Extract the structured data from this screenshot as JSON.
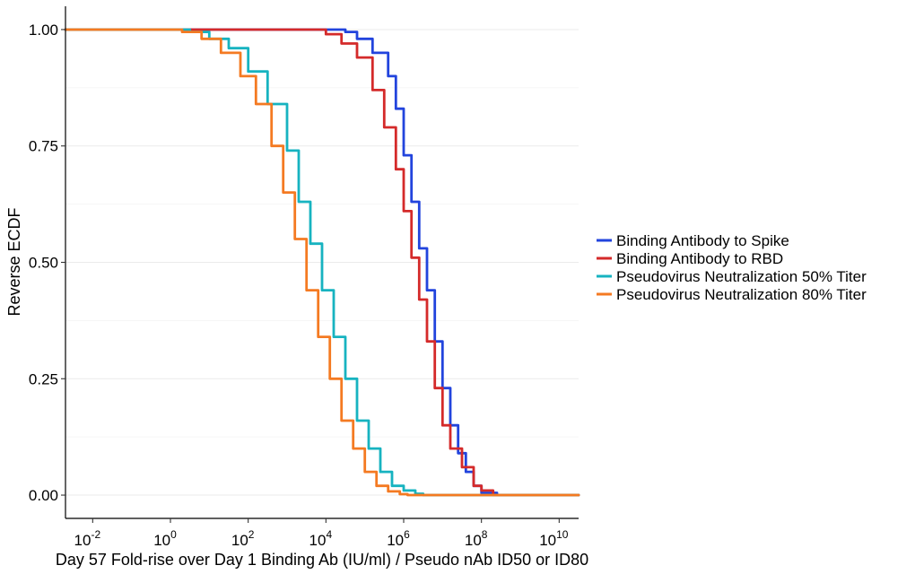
{
  "chart_data": {
    "type": "line",
    "title": "",
    "xlabel": "Day 57 Fold-rise over Day 1 Binding Ab (IU/ml) / Pseudo nAb ID50 or ID80",
    "ylabel": "Reverse ECDF",
    "x_scale": "log10",
    "xlim": [
      -2.7,
      10.5
    ],
    "ylim": [
      -0.05,
      1.05
    ],
    "x_ticks": [
      -2,
      0,
      2,
      4,
      6,
      8,
      10
    ],
    "x_tick_labels": [
      {
        "base": "10",
        "exp": "-2"
      },
      {
        "base": "10",
        "exp": "0"
      },
      {
        "base": "10",
        "exp": "2"
      },
      {
        "base": "10",
        "exp": "4"
      },
      {
        "base": "10",
        "exp": "6"
      },
      {
        "base": "10",
        "exp": "8"
      },
      {
        "base": "10",
        "exp": "10"
      }
    ],
    "y_ticks": [
      0,
      0.25,
      0.5,
      0.75,
      1
    ],
    "y_tick_labels": [
      "0.00",
      "0.25",
      "0.50",
      "0.75",
      "1.00"
    ],
    "grid": "horizontal",
    "legend_position": "right",
    "series": [
      {
        "name": "Binding Antibody to Spike",
        "color": "#2244dd",
        "x_log10": [
          -2.7,
          4.2,
          4.5,
          4.8,
          5.2,
          5.6,
          5.8,
          6.0,
          6.2,
          6.4,
          6.6,
          6.8,
          7.0,
          7.2,
          7.4,
          7.6,
          7.8,
          8.0,
          8.4,
          10.5
        ],
        "y": [
          1.0,
          1.0,
          0.995,
          0.98,
          0.95,
          0.9,
          0.83,
          0.73,
          0.63,
          0.53,
          0.44,
          0.33,
          0.23,
          0.15,
          0.09,
          0.05,
          0.02,
          0.005,
          0.0,
          0.0
        ]
      },
      {
        "name": "Binding Antibody to RBD",
        "color": "#d42a2a",
        "x_log10": [
          -2.7,
          3.6,
          4.0,
          4.4,
          4.8,
          5.2,
          5.5,
          5.8,
          6.0,
          6.2,
          6.4,
          6.6,
          6.8,
          7.0,
          7.2,
          7.5,
          7.8,
          8.0,
          8.3,
          10.5
        ],
        "y": [
          1.0,
          1.0,
          0.99,
          0.97,
          0.94,
          0.87,
          0.79,
          0.7,
          0.61,
          0.51,
          0.42,
          0.33,
          0.23,
          0.15,
          0.1,
          0.06,
          0.02,
          0.01,
          0.0,
          0.0
        ]
      },
      {
        "name": "Pseudovirus Neutralization 50% Titer",
        "color": "#17b3c0",
        "x_log10": [
          -2.7,
          0.0,
          0.5,
          1.0,
          1.5,
          2.0,
          2.5,
          3.0,
          3.3,
          3.6,
          3.9,
          4.2,
          4.5,
          4.8,
          5.1,
          5.4,
          5.7,
          6.0,
          6.3,
          6.5,
          10.5
        ],
        "y": [
          1.0,
          1.0,
          0.995,
          0.98,
          0.96,
          0.91,
          0.84,
          0.74,
          0.63,
          0.54,
          0.44,
          0.34,
          0.25,
          0.16,
          0.1,
          0.05,
          0.02,
          0.01,
          0.003,
          0.0,
          0.0
        ]
      },
      {
        "name": "Pseudovirus Neutralization 80% Titer",
        "color": "#f47a22",
        "x_log10": [
          -2.7,
          -0.3,
          0.3,
          0.8,
          1.3,
          1.8,
          2.2,
          2.6,
          2.9,
          3.2,
          3.5,
          3.8,
          4.1,
          4.4,
          4.7,
          5.0,
          5.3,
          5.6,
          5.9,
          6.1,
          10.5
        ],
        "y": [
          1.0,
          1.0,
          0.995,
          0.98,
          0.95,
          0.9,
          0.84,
          0.75,
          0.65,
          0.55,
          0.44,
          0.34,
          0.25,
          0.16,
          0.1,
          0.05,
          0.02,
          0.008,
          0.002,
          0.0,
          0.0
        ]
      }
    ]
  }
}
